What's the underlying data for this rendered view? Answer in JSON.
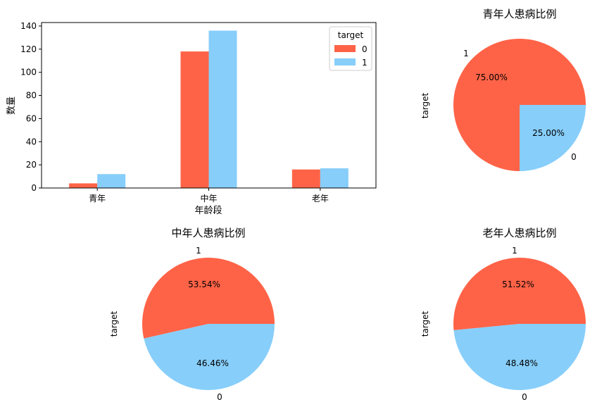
{
  "colors": {
    "c0": "#ff6347",
    "c1": "#87cefa",
    "legend_border": "#cccccc"
  },
  "chart_data": [
    {
      "type": "bar",
      "title": "",
      "xlabel": "年龄段",
      "ylabel": "数量",
      "categories": [
        "青年",
        "中年",
        "老年"
      ],
      "ylim": [
        0,
        143
      ],
      "yticks": [
        0,
        20,
        40,
        60,
        80,
        100,
        120,
        140
      ],
      "legend": {
        "title": "target",
        "placement": "top-right"
      },
      "series": [
        {
          "name": "0",
          "values": [
            4,
            118,
            16
          ]
        },
        {
          "name": "1",
          "values": [
            12,
            136,
            17
          ]
        }
      ],
      "grid": false
    },
    {
      "type": "pie",
      "title": "青年人患病比例",
      "ylabel": "target",
      "slices": [
        {
          "label": "1",
          "value": 75.0,
          "pct_label": "75.00%"
        },
        {
          "label": "0",
          "value": 25.0,
          "pct_label": "25.00%"
        }
      ]
    },
    {
      "type": "pie",
      "title": "中年人患病比例",
      "ylabel": "target",
      "slices": [
        {
          "label": "1",
          "value": 53.54,
          "pct_label": "53.54%"
        },
        {
          "label": "0",
          "value": 46.46,
          "pct_label": "46.46%"
        }
      ]
    },
    {
      "type": "pie",
      "title": "老年人患病比例",
      "ylabel": "target",
      "slices": [
        {
          "label": "1",
          "value": 51.52,
          "pct_label": "51.52%"
        },
        {
          "label": "0",
          "value": 48.48,
          "pct_label": "48.48%"
        }
      ]
    }
  ]
}
